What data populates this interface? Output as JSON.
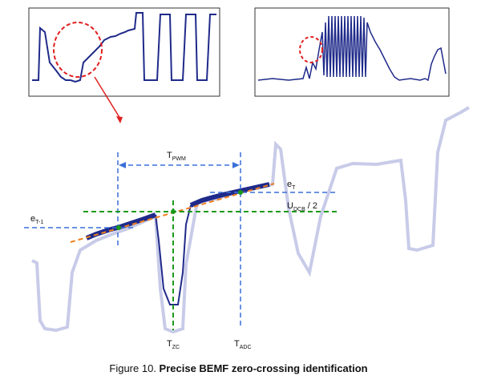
{
  "labels": {
    "t_pwm": {
      "main": "T",
      "sub": "PWM"
    },
    "e_t": {
      "main": "e",
      "sub": "T"
    },
    "e_t1": {
      "main": "e",
      "sub": "T-1"
    },
    "u_dcb": {
      "main": "U",
      "sub": "DCB",
      "suffix": " / 2"
    },
    "t_zc": {
      "main": "T",
      "sub": "ZC"
    },
    "t_adc": {
      "main": "T",
      "sub": "ADC"
    }
  },
  "caption": {
    "prefix": "Figure 10. ",
    "title": "Precise BEMF zero-crossing identification"
  },
  "colors": {
    "trace": "#1f2a8a",
    "trace_faded": "#c8cbe8",
    "blue_dash": "#3a6fd8",
    "green_dash": "#1a9a1a",
    "red_circle": "#e02020",
    "orange_fit": "#f08020",
    "arrow": "#e02020"
  }
}
